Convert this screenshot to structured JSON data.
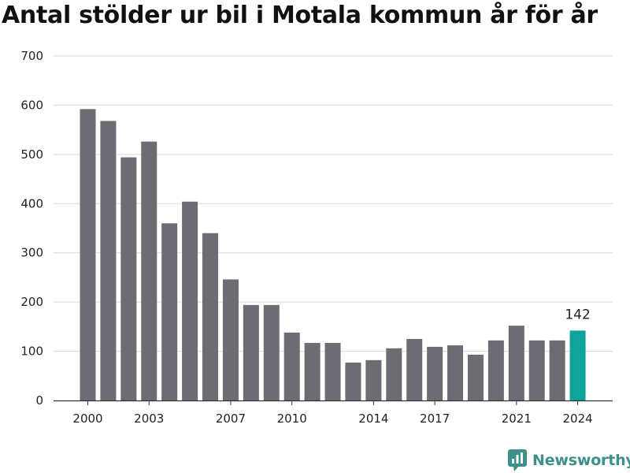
{
  "title": "Antal stölder ur bil i Motala kommun år för år",
  "brand": {
    "name": "Newsworthy",
    "icon": "newsworthy-logo-icon",
    "color": "#3f8f8a"
  },
  "colors": {
    "bar": "#6d6c72",
    "highlight": "#0fa39a",
    "grid": "#d9d9d9",
    "axis": "#333333"
  },
  "chart_data": {
    "type": "bar",
    "title": "Antal stölder ur bil i Motala kommun år för år",
    "xlabel": "",
    "ylabel": "",
    "ylim": [
      0,
      700
    ],
    "yticks": [
      0,
      100,
      200,
      300,
      400,
      500,
      600,
      700
    ],
    "grid": true,
    "categories": [
      "2000",
      "2001",
      "2002",
      "2003",
      "2004",
      "2005",
      "2006",
      "2007",
      "2008",
      "2009",
      "2010",
      "2011",
      "2012",
      "2013",
      "2014",
      "2015",
      "2016",
      "2017",
      "2018",
      "2019",
      "2020",
      "2021",
      "2022",
      "2023",
      "2024"
    ],
    "xtick_labels": [
      "2000",
      "2003",
      "2007",
      "2010",
      "2014",
      "2017",
      "2021",
      "2024"
    ],
    "values": [
      592,
      568,
      494,
      526,
      360,
      404,
      340,
      246,
      194,
      194,
      138,
      117,
      117,
      77,
      82,
      106,
      125,
      109,
      112,
      93,
      122,
      152,
      122,
      122,
      142
    ],
    "highlight_category": "2024",
    "data_labels": [
      {
        "category": "2024",
        "text": "142"
      }
    ]
  }
}
